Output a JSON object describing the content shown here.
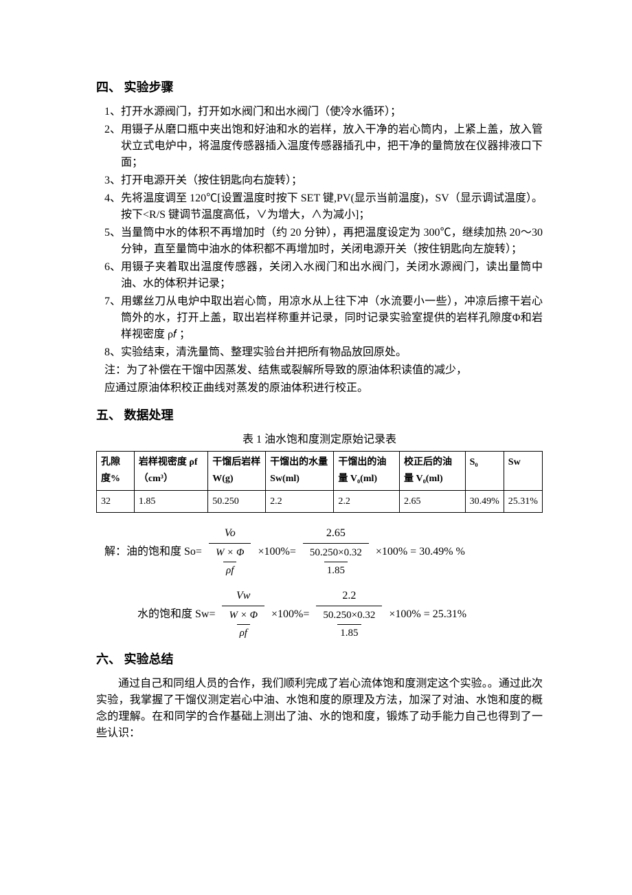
{
  "section4": {
    "heading": "四、 实验步骤",
    "steps": [
      {
        "num": "1、",
        "text": "打开水源阀门，打开如水阀门和出水阀门（使冷水循环）；"
      },
      {
        "num": "2、",
        "text": "用镊子从磨口瓶中夹出饱和好油和水的岩样，放入干净的岩心筒内，上紧上盖，放入管状立式电炉中，将温度传感器插入温度传感器插孔中，把干净的量筒放在仪器排液口下面；"
      },
      {
        "num": "3、",
        "text": "打开电源开关（按住钥匙向右旋转）；"
      },
      {
        "num": "4、",
        "text": "先将温度调至 120℃[设置温度时按下 SET 键,PV(显示当前温度)，SV（显示调试温度）。按下<R/S 键调节温度高低，∨为增大，∧为减小]；"
      },
      {
        "num": "5、",
        "text": "当量筒中水的体积不再增加时（约 20 分钟），再把温度设定为 300℃，继续加热 20～30 分钟，直至量筒中油水的体积都不再增加时，关闭电源开关（按住钥匙向左旋转）；"
      },
      {
        "num": "6、",
        "text": "用镊子夹着取出温度传感器，关闭入水阀门和出水阀门，关闭水源阀门，读出量筒中油、水的体积并记录；"
      },
      {
        "num": "7、",
        "text": "用螺丝刀从电炉中取出岩心筒，用凉水从上往下冲（水流要小一些），冲凉后擦干岩心筒外的水，打开上盖，取出岩样称重并记录，同时记录实验室提供的岩样孔隙度Φ和岩样视密度  ρ𝑓 ；"
      },
      {
        "num": "8、",
        "text": "实验结束，清洗量筒、整理实验台并把所有物品放回原处。"
      }
    ],
    "note_lines": [
      "注：为了补偿在干馏中因蒸发、结焦或裂解所导致的原油体积读值的减少，",
      "应通过原油体积校正曲线对蒸发的原油体积进行校正。"
    ]
  },
  "section5": {
    "heading": "五、 数据处理",
    "table_caption": "表 1  油水饱和度测定原始记录表",
    "table": {
      "columns": [
        "孔隙度%",
        "岩样视密度 ρf （cm³）",
        "干馏后岩样 W(g)",
        "干馏出的水量 Sw(ml)",
        "干馏出的油量 V₀(ml)",
        "校正后的油量 V₀(ml)",
        "S₀",
        "Sw"
      ],
      "rows": [
        [
          "32",
          "1.85",
          "50.250",
          "2.2",
          "2.2",
          "2.65",
          "30.49%",
          "25.31%"
        ]
      ],
      "border_color": "#000000",
      "font_size": 14
    },
    "formulas": {
      "so": {
        "prefix": "解：油的饱和度 So=",
        "generic_num": "Vo",
        "mid": "×100%=",
        "value_num": "2.65",
        "value_den_top": "50.250×0.32",
        "value_den_bot": "1.85",
        "result": "×100% = 30.49% %"
      },
      "sw": {
        "prefix": "水的饱和度 Sw=",
        "generic_num": "Vw",
        "mid": "×100%=",
        "value_num": "2.2",
        "value_den_top": "50.250×0.32",
        "value_den_bot": "1.85",
        "result": "×100% = 25.31%"
      },
      "generic_den_top": "W × Φ",
      "generic_den_bot": "ρf"
    }
  },
  "section6": {
    "heading": "六、 实验总结",
    "para": "通过自己和同组人员的合作，我们顺利完成了岩心流体饱和度测定这个实验。。通过此次实验，我掌握了干馏仪测定岩心中油、水饱和度的原理及方法，加深了对油、水饱和度的概念的理解。在和同学的合作基础上测出了油、水的饱和度，锻炼了动手能力自己也得到了一些认识："
  },
  "style": {
    "background_color": "#ffffff",
    "text_color": "#000000",
    "heading_fontsize": 18,
    "body_fontsize": 16,
    "font_family": "SimSun"
  }
}
